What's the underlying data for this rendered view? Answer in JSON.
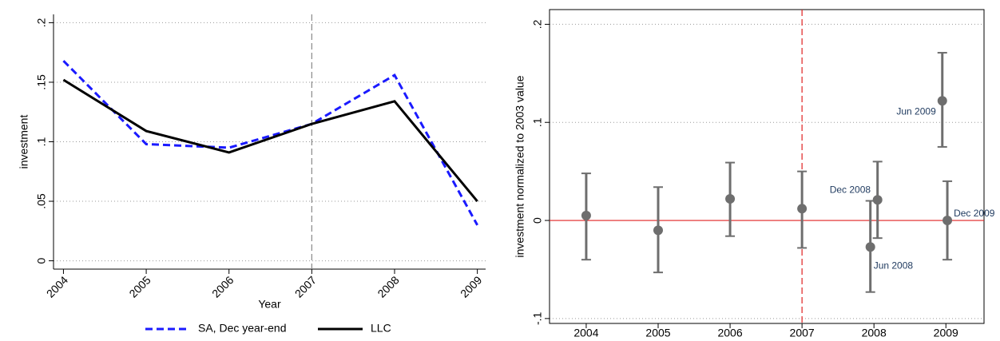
{
  "chart_data": [
    {
      "type": "line",
      "x": [
        2004,
        2005,
        2006,
        2007,
        2008,
        2009
      ],
      "series": [
        {
          "name": "SA, Dec year-end",
          "color": "#1a1aff",
          "dash": true,
          "values": [
            0.168,
            0.098,
            0.095,
            0.115,
            0.156,
            0.03
          ]
        },
        {
          "name": "LLC",
          "color": "#000000",
          "dash": false,
          "values": [
            0.152,
            0.109,
            0.091,
            0.115,
            0.134,
            0.05
          ]
        }
      ],
      "xlim": [
        2003.88,
        2009.1
      ],
      "xticks": [
        2004,
        2005,
        2006,
        2007,
        2008,
        2009
      ],
      "ylim": [
        -0.007,
        0.207
      ],
      "yticks": [
        0,
        {
          "value": 0.05,
          "label": ".05"
        },
        {
          "value": 0.1,
          "label": ".1"
        },
        {
          "value": 0.15,
          "label": ".15"
        },
        {
          "value": 0.2,
          "label": ".2"
        }
      ],
      "x_label": "Year",
      "y_label": "investment",
      "grid": true,
      "vline": 2007,
      "vline_color": "#888888",
      "legend": "bottom"
    },
    {
      "type": "errorbar",
      "x": [
        2004,
        2005,
        2006,
        2007,
        2007.95,
        2008.05,
        2008.95,
        2009.02
      ],
      "values": [
        0.005,
        -0.01,
        0.022,
        0.012,
        -0.027,
        0.021,
        0.122,
        0
      ],
      "lower": [
        -0.04,
        -0.053,
        -0.016,
        -0.028,
        -0.073,
        -0.018,
        0.075,
        -0.04
      ],
      "upper": [
        0.048,
        0.034,
        0.059,
        0.05,
        0.02,
        0.06,
        0.171,
        0.04
      ],
      "point_labels": [
        null,
        null,
        null,
        null,
        "Jun 2008",
        "Dec 2008",
        "Jun 2009",
        "Dec 2009"
      ],
      "color": "#6e6e6e",
      "xlim": [
        2003.49,
        2009.53
      ],
      "xticks": [
        2004,
        2005,
        2006,
        2007,
        2008,
        2009
      ],
      "ylim": [
        -0.105,
        0.215
      ],
      "yticks": [
        {
          "value": -0.1,
          "label": "-.1"
        },
        0,
        {
          "value": 0.1,
          "label": ".1"
        },
        {
          "value": 0.2,
          "label": ".2"
        }
      ],
      "y_label": "investment normalized to 2003 value",
      "grid": true,
      "vline": 2007,
      "hline": 0,
      "ref_color": "#e02020"
    }
  ]
}
